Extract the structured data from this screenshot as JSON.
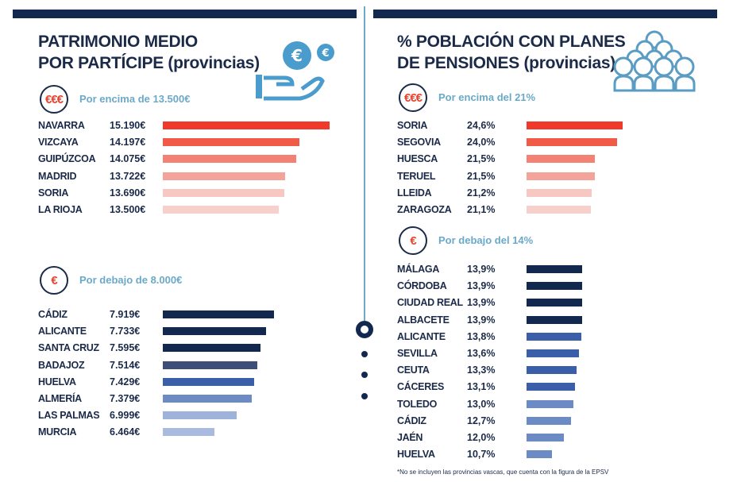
{
  "chart_data": [
    {
      "type": "bar",
      "orientation": "horizontal",
      "title": "PATRIMONIO MEDIO POR PARTÍCIPE (provincias)",
      "group_label": "Por encima de 13.500€",
      "badge": "€€€",
      "categories": [
        "NAVARRA",
        "VIZCAYA",
        "GUIPÚZCOA",
        "MADRID",
        "SORIA",
        "LA RIOJA"
      ],
      "values": [
        15190,
        14197,
        14075,
        13722,
        13690,
        13500
      ],
      "labels": [
        "15.190€",
        "14.197€",
        "14.075€",
        "13.722€",
        "13.690€",
        "13.500€"
      ],
      "colors": [
        "#f0392b",
        "#f25a48",
        "#f38275",
        "#f4a39a",
        "#f7c7c2",
        "#f7cfcb"
      ],
      "xlim": [
        9644,
        15190
      ]
    },
    {
      "type": "bar",
      "orientation": "horizontal",
      "group_label": "Por debajo de 8.000€",
      "badge": "€",
      "categories": [
        "CÁDIZ",
        "ALICANTE",
        "SANTA CRUZ",
        "BADAJOZ",
        "HUELVA",
        "ALMERÍA",
        "LAS PALMAS",
        "MURCIA"
      ],
      "values": [
        7919,
        7733,
        7595,
        7514,
        7429,
        7379,
        6999,
        6464
      ],
      "labels": [
        "7.919€",
        "7.733€",
        "7.595€",
        "7.514€",
        "7.429€",
        "7.379€",
        "6.999€",
        "6.464€"
      ],
      "colors": [
        "#13284f",
        "#13284f",
        "#13284f",
        "#3d4f78",
        "#3a5fa8",
        "#6c8ac4",
        "#9fb2d9",
        "#a9bbe0"
      ],
      "xlim": [
        5203,
        7919
      ]
    },
    {
      "type": "bar",
      "orientation": "horizontal",
      "title": "% POBLACIÓN CON PLANES DE PENSIONES (provincias)",
      "group_label": "Por encima del 21%",
      "badge": "€€€",
      "categories": [
        "SORIA",
        "SEGOVIA",
        "HUESCA",
        "TERUEL",
        "LLEIDA",
        "ZARAGOZA"
      ],
      "values": [
        24.6,
        24.0,
        21.5,
        21.5,
        21.2,
        21.1
      ],
      "labels": [
        "24,6%",
        "24,0%",
        "21,5%",
        "21,5%",
        "21,2%",
        "21,1%"
      ],
      "colors": [
        "#f0392b",
        "#f25a48",
        "#f38275",
        "#f4a39a",
        "#f7c7c2",
        "#f7cfcb"
      ],
      "xlim": [
        14,
        24.6
      ]
    },
    {
      "type": "bar",
      "orientation": "horizontal",
      "group_label": "Por debajo del 14%",
      "badge": "€",
      "categories": [
        "MÁLAGA",
        "CÓRDOBA",
        "CIUDAD REAL",
        "ALBACETE",
        "ALICANTE",
        "SEVILLA",
        "CEUTA",
        "CÁCERES",
        "TOLEDO",
        "CÁDIZ",
        "JAÉN",
        "HUELVA"
      ],
      "values": [
        13.9,
        13.9,
        13.9,
        13.9,
        13.8,
        13.6,
        13.3,
        13.1,
        13.0,
        12.7,
        12.0,
        10.7
      ],
      "labels": [
        "13,9%",
        "13,9%",
        "13,9%",
        "13,9%",
        "13,8%",
        "13,6%",
        "13,3%",
        "13,1%",
        "13,0%",
        "12,7%",
        "12,0%",
        "10,7%"
      ],
      "colors": [
        "#13284f",
        "#13284f",
        "#13284f",
        "#13284f",
        "#3a5fa8",
        "#3a5fa8",
        "#3a5fa8",
        "#3a5fa8",
        "#6c8ac4",
        "#6c8ac4",
        "#6c8ac4",
        "#6c8ac4"
      ],
      "xlim": [
        8,
        13.9
      ]
    }
  ],
  "titles": {
    "left_line1": "PATRIMONIO MEDIO",
    "left_line2": "POR PARTÍCIPE (provincias)",
    "right_line1": "% POBLACIÓN CON PLANES",
    "right_line2": "DE PENSIONES (provincias)"
  },
  "footnote": "*No se incluyen las provincias vascas, que cuenta con la figura de la EPSV",
  "icons": [
    "hand-coins-euro-icon",
    "people-group-icon"
  ]
}
